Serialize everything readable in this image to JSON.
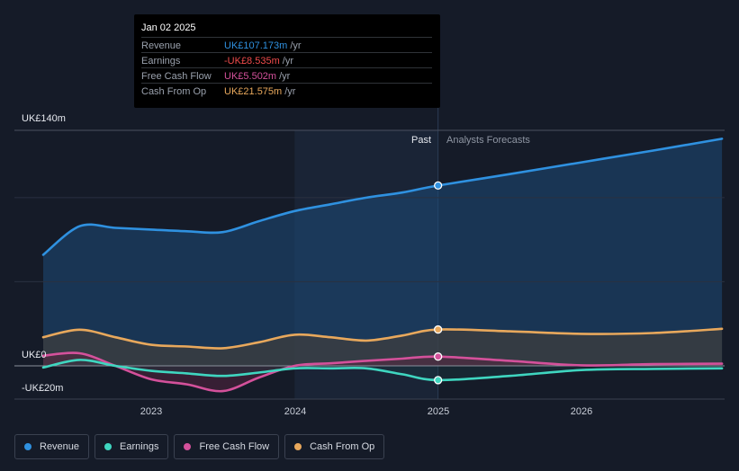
{
  "tooltip": {
    "date": "Jan 02 2025",
    "rows": [
      {
        "label": "Revenue",
        "value": "UK£107.173m",
        "unit": "/yr",
        "color": "#2f91e0"
      },
      {
        "label": "Earnings",
        "value": "-UK£8.535m",
        "unit": "/yr",
        "color": "#ef4b4b"
      },
      {
        "label": "Free Cash Flow",
        "value": "UK£5.502m",
        "unit": "/yr",
        "color": "#d4519b"
      },
      {
        "label": "Cash From Op",
        "value": "UK£21.575m",
        "unit": "/yr",
        "color": "#e8a85c"
      }
    ]
  },
  "labels": {
    "past": "Past",
    "forecast": "Analysts Forecasts"
  },
  "legend": [
    {
      "label": "Revenue",
      "color": "#2f91e0"
    },
    {
      "label": "Earnings",
      "color": "#3fd6c0"
    },
    {
      "label": "Free Cash Flow",
      "color": "#d4519b"
    },
    {
      "label": "Cash From Op",
      "color": "#e8a85c"
    }
  ],
  "chart_data": {
    "type": "line",
    "title": "",
    "x_ticks": [
      {
        "label": "2023",
        "x": 2023.0
      },
      {
        "label": "2024",
        "x": 2024.0
      },
      {
        "label": "2025",
        "x": 2025.0
      },
      {
        "label": "2026",
        "x": 2026.0
      }
    ],
    "y_ticks": [
      {
        "label": "UK£140m",
        "value": 140
      },
      {
        "label": "UK£0",
        "value": 0
      },
      {
        "label": "-UK£20m",
        "value": -20
      }
    ],
    "ylim": [
      -20,
      140
    ],
    "xlim": [
      2022.25,
      2026.98
    ],
    "past_until": 2025.0,
    "highlight_from": 2024.0,
    "series": [
      {
        "name": "Revenue",
        "color": "#2f91e0",
        "x": [
          2022.25,
          2022.5,
          2022.75,
          2023.0,
          2023.25,
          2023.5,
          2023.75,
          2024.0,
          2024.25,
          2024.5,
          2024.75,
          2025.0,
          2025.5,
          2026.0,
          2026.5,
          2026.98
        ],
        "y": [
          66,
          83,
          82,
          81,
          80,
          79.5,
          86,
          92,
          96,
          100,
          103,
          107.2,
          114,
          121,
          128,
          135
        ]
      },
      {
        "name": "Cash From Op",
        "color": "#e8a85c",
        "x": [
          2022.25,
          2022.5,
          2022.75,
          2023.0,
          2023.25,
          2023.5,
          2023.75,
          2024.0,
          2024.25,
          2024.5,
          2024.75,
          2025.0,
          2025.5,
          2026.0,
          2026.5,
          2026.98
        ],
        "y": [
          17,
          21.5,
          17,
          12.5,
          11.5,
          10.5,
          14,
          18.5,
          17,
          15,
          18,
          21.6,
          20.5,
          19,
          19.5,
          22
        ]
      },
      {
        "name": "Free Cash Flow",
        "color": "#d4519b",
        "x": [
          2022.25,
          2022.5,
          2022.75,
          2023.0,
          2023.25,
          2023.5,
          2023.75,
          2024.0,
          2024.25,
          2024.5,
          2024.75,
          2025.0,
          2025.5,
          2026.0,
          2026.5,
          2026.98
        ],
        "y": [
          6,
          7.5,
          0,
          -8,
          -11,
          -15,
          -7,
          0,
          1.5,
          3,
          4.3,
          5.5,
          3,
          0.3,
          1,
          1.3
        ]
      },
      {
        "name": "Earnings",
        "color": "#3fd6c0",
        "x": [
          2022.25,
          2022.5,
          2022.75,
          2023.0,
          2023.25,
          2023.5,
          2023.75,
          2024.0,
          2024.25,
          2024.5,
          2024.75,
          2025.0,
          2025.5,
          2026.0,
          2026.5,
          2026.98
        ],
        "y": [
          -1,
          3.5,
          0,
          -3,
          -4.5,
          -6,
          -4,
          -1.5,
          -1.5,
          -1.5,
          -5,
          -8.5,
          -6,
          -2.5,
          -1.8,
          -1.5
        ]
      }
    ]
  }
}
